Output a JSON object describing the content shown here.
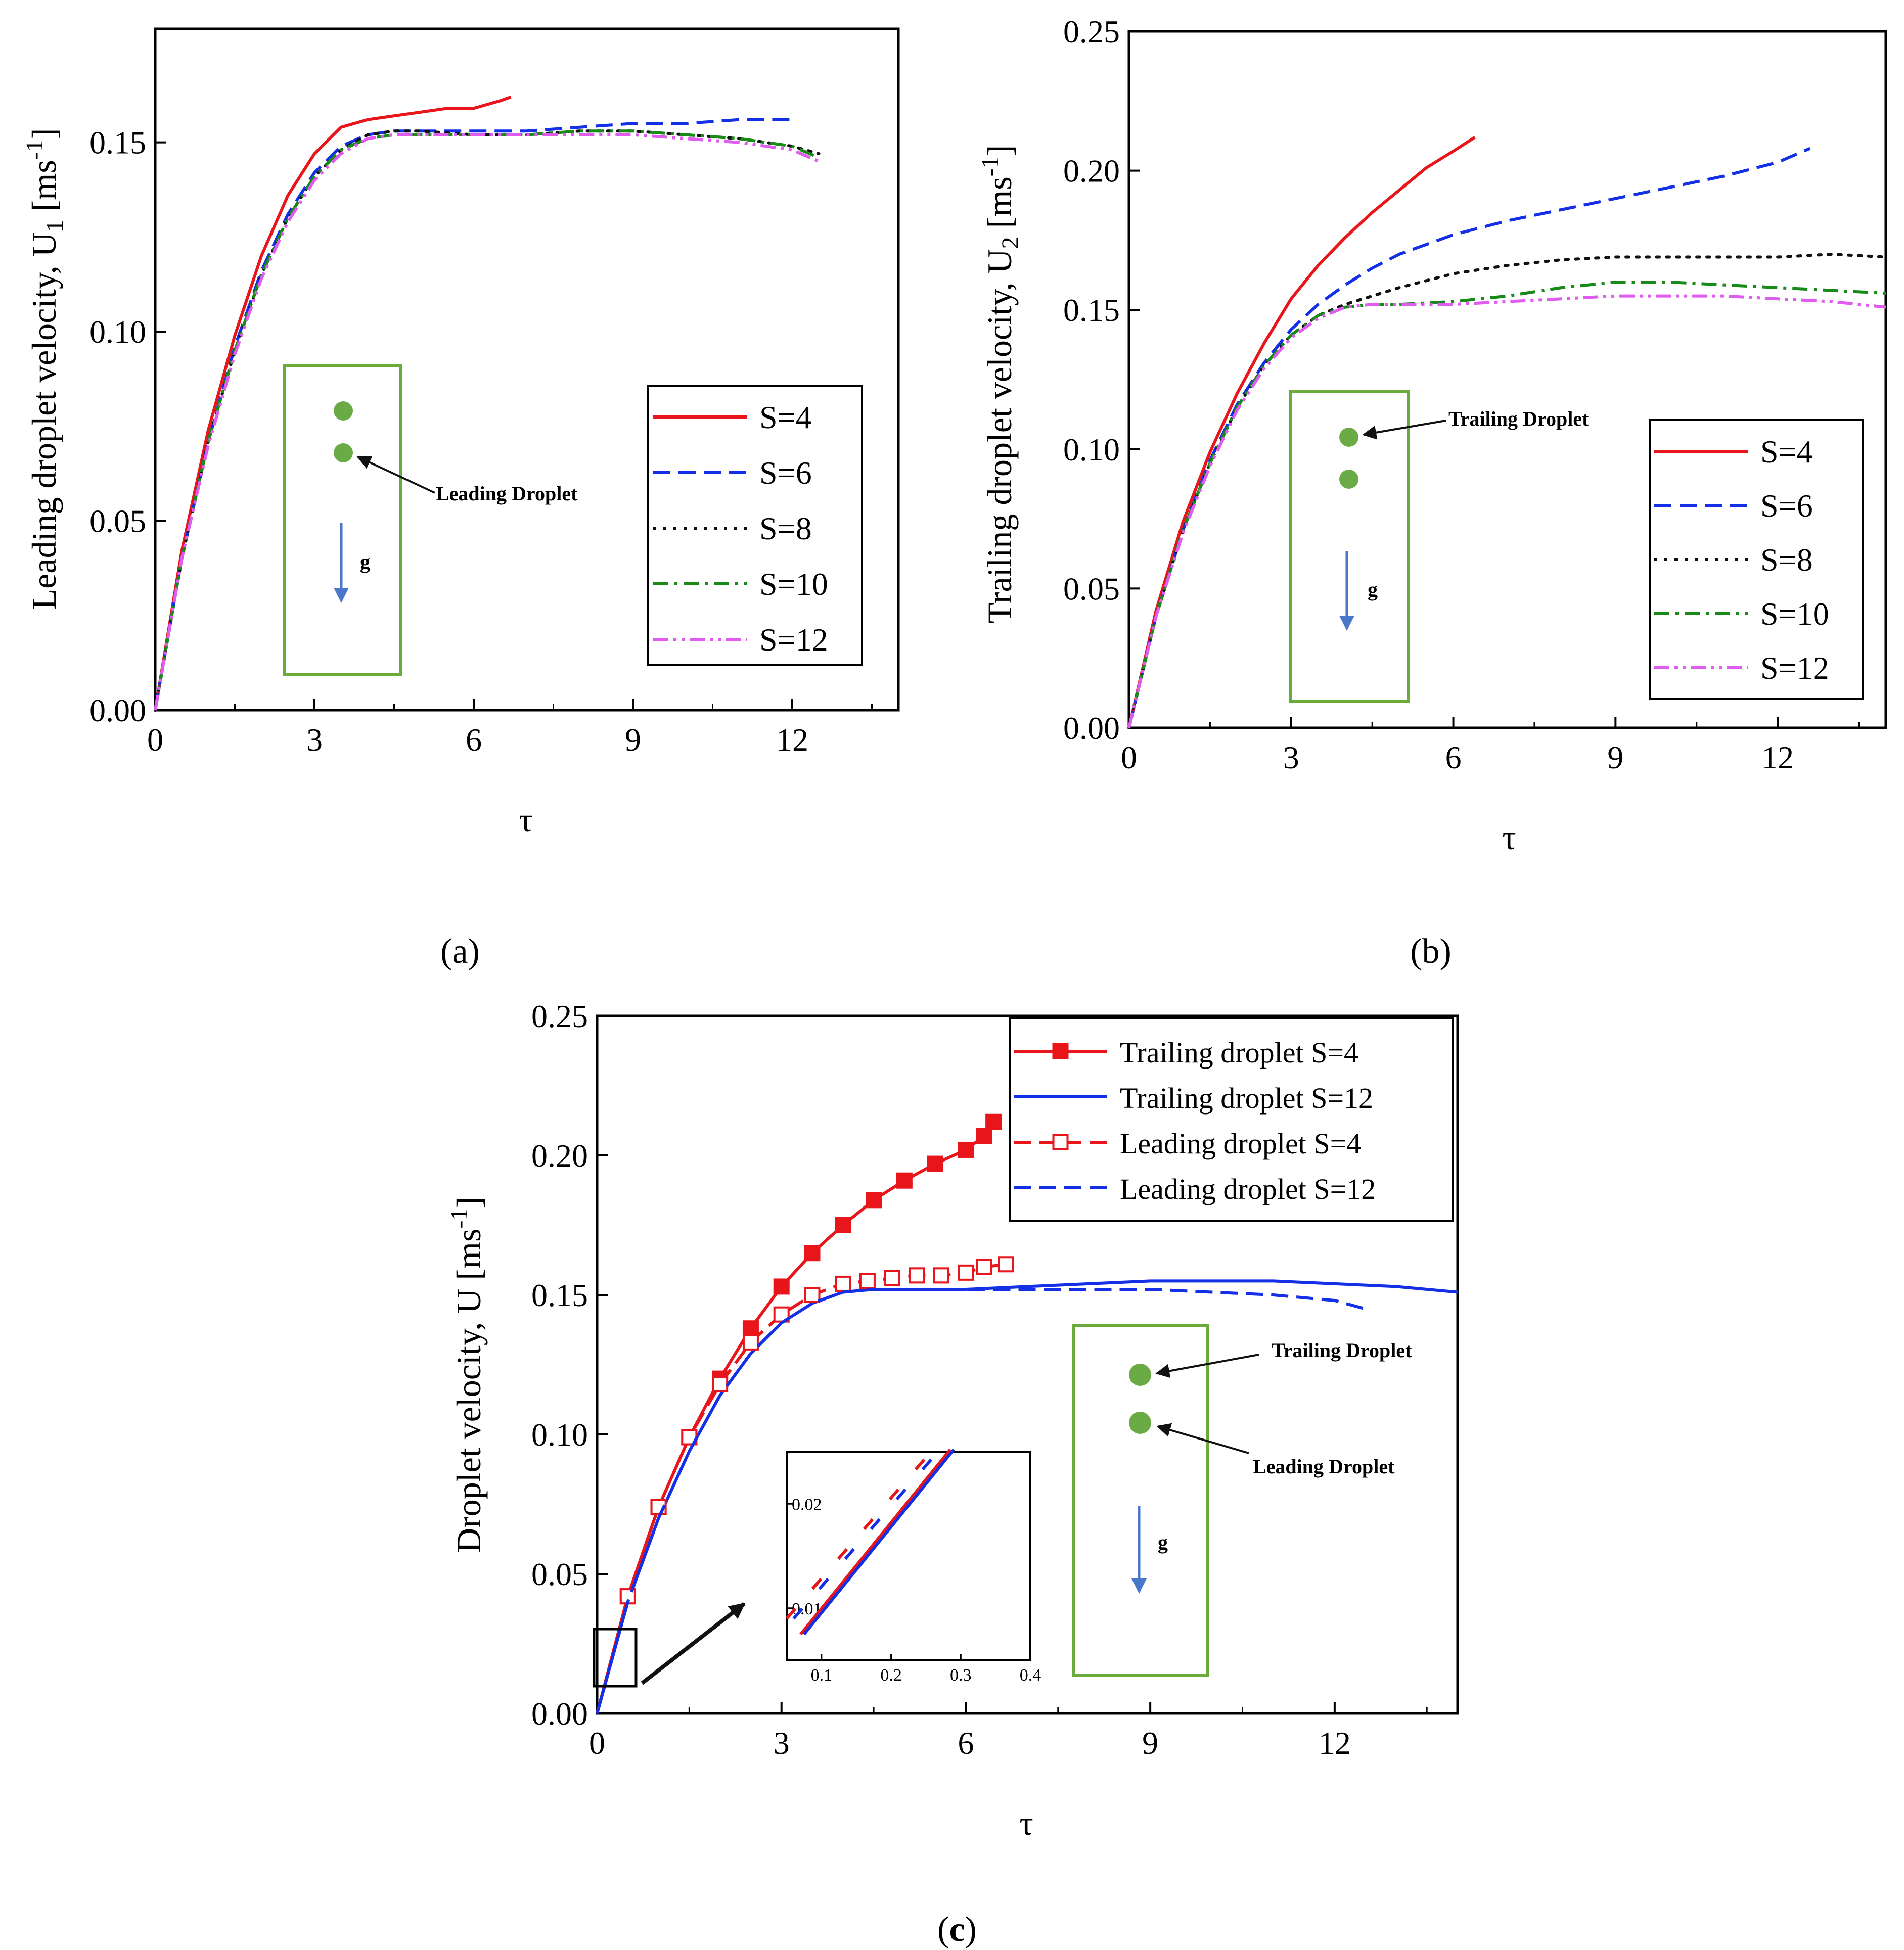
{
  "colors": {
    "red": "#e8151b",
    "blue": "#1430e6",
    "black": "#111111",
    "green": "#178a17",
    "magenta": "#e05cf0",
    "box": "#6aab3c",
    "droplet": "#6aab45",
    "gravity": "#4a78c8"
  },
  "chart_data": [
    {
      "id": "a",
      "type": "line",
      "caption": "(a)",
      "xlabel": "τ",
      "ylabel_main": "Leading droplet velocity, U",
      "ylabel_sub": "1",
      "ylabel_unit_pre": " [ms",
      "ylabel_unit_sup": "-1",
      "ylabel_unit_post": "]",
      "xlim": [
        0,
        14
      ],
      "ylim": [
        0,
        0.18
      ],
      "xticks": [
        0,
        3,
        6,
        9,
        12
      ],
      "yticks": [
        0.0,
        0.05,
        0.1,
        0.15
      ],
      "ytick_labels": [
        "0.00",
        "0.05",
        "0.10",
        "0.15"
      ],
      "legend": [
        "S=4",
        "S=6",
        "S=8",
        "S=10",
        "S=12"
      ],
      "inset": {
        "label": "Leading Droplet",
        "gravity_label": "g",
        "points_to": "lower"
      },
      "series": [
        {
          "name": "S=4",
          "style": "solid",
          "color": "red",
          "x": [
            0,
            0.5,
            1,
            1.5,
            2,
            2.5,
            3,
            3.5,
            4,
            4.5,
            5,
            5.5,
            6,
            6.5,
            6.7
          ],
          "y": [
            0,
            0.042,
            0.074,
            0.099,
            0.12,
            0.136,
            0.147,
            0.154,
            0.156,
            0.157,
            0.158,
            0.159,
            0.159,
            0.161,
            0.162
          ]
        },
        {
          "name": "S=6",
          "style": "dashed",
          "color": "blue",
          "x": [
            0,
            0.5,
            1,
            1.5,
            2,
            2.5,
            3,
            3.5,
            4,
            4.5,
            5,
            6,
            7,
            8,
            9,
            10,
            11,
            12
          ],
          "y": [
            0,
            0.04,
            0.071,
            0.096,
            0.116,
            0.131,
            0.142,
            0.149,
            0.152,
            0.153,
            0.153,
            0.153,
            0.153,
            0.154,
            0.155,
            0.155,
            0.156,
            0.156
          ]
        },
        {
          "name": "S=8",
          "style": "dotted",
          "color": "black",
          "x": [
            0,
            0.5,
            1,
            1.5,
            2,
            2.5,
            3,
            3.5,
            4,
            4.5,
            5,
            6,
            7,
            8,
            9,
            10,
            11,
            12,
            12.5
          ],
          "y": [
            0,
            0.04,
            0.071,
            0.095,
            0.115,
            0.13,
            0.141,
            0.148,
            0.152,
            0.153,
            0.153,
            0.152,
            0.152,
            0.153,
            0.153,
            0.152,
            0.151,
            0.149,
            0.147
          ]
        },
        {
          "name": "S=10",
          "style": "dashdot",
          "color": "green",
          "x": [
            0,
            0.5,
            1,
            1.5,
            2,
            2.5,
            3,
            3.5,
            4,
            4.5,
            5,
            6,
            7,
            8,
            9,
            10,
            11,
            12,
            12.5
          ],
          "y": [
            0,
            0.04,
            0.071,
            0.095,
            0.115,
            0.13,
            0.141,
            0.148,
            0.151,
            0.152,
            0.152,
            0.152,
            0.152,
            0.153,
            0.153,
            0.152,
            0.151,
            0.149,
            0.146
          ]
        },
        {
          "name": "S=12",
          "style": "dashdotdot",
          "color": "magenta",
          "x": [
            0,
            0.5,
            1,
            1.5,
            2,
            2.5,
            3,
            3.5,
            4,
            4.5,
            5,
            6,
            7,
            8,
            9,
            10,
            11,
            12,
            12.5
          ],
          "y": [
            0,
            0.04,
            0.07,
            0.094,
            0.114,
            0.129,
            0.14,
            0.147,
            0.151,
            0.152,
            0.152,
            0.152,
            0.152,
            0.152,
            0.152,
            0.151,
            0.15,
            0.148,
            0.145
          ]
        }
      ]
    },
    {
      "id": "b",
      "type": "line",
      "caption": "(b)",
      "xlabel": "τ",
      "ylabel_main": "Trailing droplet velocity, U",
      "ylabel_sub": "2",
      "ylabel_unit_pre": " [ms",
      "ylabel_unit_sup": "-1",
      "ylabel_unit_post": "]",
      "xlim": [
        0,
        14
      ],
      "ylim": [
        0,
        0.25
      ],
      "xticks": [
        0,
        3,
        6,
        9,
        12
      ],
      "yticks": [
        0.0,
        0.05,
        0.1,
        0.15,
        0.2,
        0.25
      ],
      "ytick_labels": [
        "0.00",
        "0.05",
        "0.10",
        "0.15",
        "0.20",
        "0.25"
      ],
      "legend": [
        "S=4",
        "S=6",
        "S=8",
        "S=10",
        "S=12"
      ],
      "inset": {
        "label": "Trailing Droplet",
        "gravity_label": "g",
        "points_to": "upper"
      },
      "series": [
        {
          "name": "S=4",
          "style": "solid",
          "color": "red",
          "x": [
            0,
            0.5,
            1,
            1.5,
            2,
            2.5,
            3,
            3.5,
            4,
            4.5,
            5,
            5.5,
            6,
            6.4
          ],
          "y": [
            0,
            0.042,
            0.074,
            0.099,
            0.12,
            0.138,
            0.154,
            0.166,
            0.176,
            0.185,
            0.193,
            0.201,
            0.207,
            0.212
          ]
        },
        {
          "name": "S=6",
          "style": "dashed",
          "color": "blue",
          "x": [
            0,
            0.5,
            1,
            1.5,
            2,
            2.5,
            3,
            3.5,
            4,
            4.5,
            5,
            6,
            7,
            8,
            9,
            10,
            11,
            12,
            12.6
          ],
          "y": [
            0,
            0.04,
            0.071,
            0.096,
            0.116,
            0.131,
            0.143,
            0.152,
            0.159,
            0.165,
            0.17,
            0.177,
            0.182,
            0.186,
            0.19,
            0.194,
            0.198,
            0.203,
            0.208
          ]
        },
        {
          "name": "S=8",
          "style": "dotted",
          "color": "black",
          "x": [
            0,
            0.5,
            1,
            1.5,
            2,
            2.5,
            3,
            3.5,
            4,
            4.5,
            5,
            6,
            7,
            8,
            9,
            10,
            11,
            12,
            13,
            14
          ],
          "y": [
            0,
            0.04,
            0.071,
            0.095,
            0.115,
            0.13,
            0.141,
            0.148,
            0.152,
            0.155,
            0.158,
            0.163,
            0.166,
            0.168,
            0.169,
            0.169,
            0.169,
            0.169,
            0.17,
            0.169
          ]
        },
        {
          "name": "S=10",
          "style": "dashdot",
          "color": "green",
          "x": [
            0,
            0.5,
            1,
            1.5,
            2,
            2.5,
            3,
            3.5,
            4,
            4.5,
            5,
            6,
            7,
            8,
            9,
            10,
            11,
            12,
            13,
            14
          ],
          "y": [
            0,
            0.04,
            0.071,
            0.095,
            0.115,
            0.13,
            0.141,
            0.148,
            0.151,
            0.152,
            0.152,
            0.153,
            0.155,
            0.158,
            0.16,
            0.16,
            0.159,
            0.158,
            0.157,
            0.156
          ]
        },
        {
          "name": "S=12",
          "style": "dashdotdot",
          "color": "magenta",
          "x": [
            0,
            0.5,
            1,
            1.5,
            2,
            2.5,
            3,
            3.5,
            4,
            4.5,
            5,
            6,
            7,
            8,
            9,
            10,
            11,
            12,
            13,
            14
          ],
          "y": [
            0,
            0.04,
            0.07,
            0.094,
            0.114,
            0.129,
            0.14,
            0.147,
            0.151,
            0.152,
            0.152,
            0.152,
            0.153,
            0.154,
            0.155,
            0.155,
            0.155,
            0.154,
            0.153,
            0.151
          ]
        }
      ]
    },
    {
      "id": "c",
      "type": "line",
      "caption_pre": "(",
      "caption_bold": "c",
      "caption_post": ")",
      "xlabel": "τ",
      "ylabel_main": "Droplet velocity, U",
      "ylabel_unit_pre": " [ms",
      "ylabel_unit_sup": "-1",
      "ylabel_unit_post": "]",
      "xlim": [
        0,
        14
      ],
      "ylim": [
        0,
        0.25
      ],
      "xticks": [
        0,
        3,
        6,
        9,
        12
      ],
      "yticks": [
        0.0,
        0.05,
        0.1,
        0.15,
        0.2,
        0.25
      ],
      "ytick_labels": [
        "0.00",
        "0.05",
        "0.10",
        "0.15",
        "0.20",
        "0.25"
      ],
      "legend": [
        "Trailing droplet S=4",
        "Trailing droplet S=12",
        "Leading droplet S=4",
        "Leading droplet S=12"
      ],
      "inset": {
        "upper_label": "Trailing Droplet",
        "lower_label": "Leading Droplet",
        "gravity_label": "g"
      },
      "series": [
        {
          "name": "Trailing droplet S=4",
          "style": "solid",
          "color": "red",
          "marker": "filled-square",
          "x": [
            0,
            0.5,
            1,
            1.5,
            2,
            2.5,
            3,
            3.5,
            4,
            4.5,
            5,
            5.5,
            6,
            6.3,
            6.45
          ],
          "y": [
            0,
            0.042,
            0.074,
            0.099,
            0.12,
            0.138,
            0.153,
            0.165,
            0.175,
            0.184,
            0.191,
            0.197,
            0.202,
            0.207,
            0.212
          ]
        },
        {
          "name": "Trailing droplet S=12",
          "style": "solid",
          "color": "blue",
          "x": [
            0,
            0.5,
            1,
            1.5,
            2,
            2.5,
            3,
            3.5,
            4,
            4.5,
            5,
            6,
            7,
            8,
            9,
            10,
            11,
            12,
            13,
            14
          ],
          "y": [
            0,
            0.04,
            0.07,
            0.094,
            0.114,
            0.129,
            0.14,
            0.147,
            0.151,
            0.152,
            0.152,
            0.152,
            0.153,
            0.154,
            0.155,
            0.155,
            0.155,
            0.154,
            0.153,
            0.151
          ]
        },
        {
          "name": "Leading droplet S=4",
          "style": "dashed",
          "color": "red",
          "marker": "open-square",
          "x": [
            0,
            0.5,
            1,
            1.5,
            2,
            2.5,
            3,
            3.5,
            4,
            4.4,
            4.8,
            5.2,
            5.6,
            6,
            6.3,
            6.65
          ],
          "y": [
            0,
            0.042,
            0.074,
            0.099,
            0.118,
            0.133,
            0.143,
            0.15,
            0.154,
            0.155,
            0.156,
            0.157,
            0.157,
            0.158,
            0.16,
            0.161
          ]
        },
        {
          "name": "Leading droplet S=12",
          "style": "dashed",
          "color": "blue",
          "x": [
            0,
            0.5,
            1,
            1.5,
            2,
            2.5,
            3,
            3.5,
            4,
            4.5,
            5,
            6,
            7,
            8,
            9,
            10,
            11,
            12,
            12.5
          ],
          "y": [
            0,
            0.04,
            0.07,
            0.094,
            0.114,
            0.129,
            0.14,
            0.147,
            0.151,
            0.152,
            0.152,
            0.152,
            0.152,
            0.152,
            0.152,
            0.151,
            0.15,
            0.148,
            0.145
          ]
        }
      ],
      "zoom": {
        "xlim": [
          0.05,
          0.4
        ],
        "ylim": [
          0.005,
          0.025
        ],
        "xticks": [
          0.1,
          0.2,
          0.3,
          0.4
        ],
        "yticks": [
          0.01,
          0.02
        ],
        "ytick_labels": [
          "0.01",
          "0.02"
        ],
        "lines": [
          {
            "color": "red",
            "style": "dashed",
            "x": [
              0.05,
              0.26
            ],
            "y": [
              0.009,
              0.0252
            ]
          },
          {
            "color": "blue",
            "style": "dashed",
            "x": [
              0.06,
              0.27
            ],
            "y": [
              0.009,
              0.0252
            ]
          },
          {
            "color": "red",
            "style": "solid",
            "x": [
              0.07,
              0.285
            ],
            "y": [
              0.0075,
              0.0252
            ]
          },
          {
            "color": "blue",
            "style": "solid",
            "x": [
              0.075,
              0.29
            ],
            "y": [
              0.0075,
              0.0252
            ]
          }
        ]
      }
    }
  ]
}
